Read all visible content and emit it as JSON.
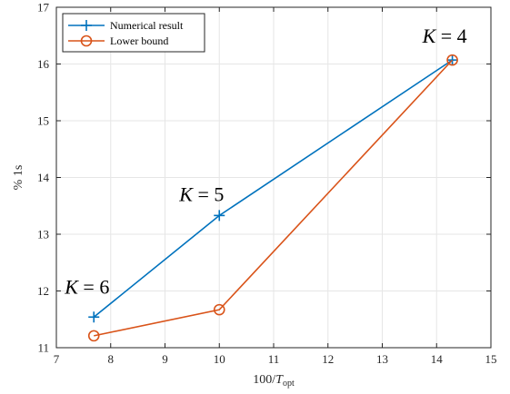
{
  "chart_data": {
    "type": "line",
    "title": "",
    "xlabel_base": "100/",
    "xlabel_var": "T",
    "xlabel_sub": "opt",
    "ylabel": "% 1s",
    "xlim": [
      7,
      15
    ],
    "ylim": [
      11,
      17
    ],
    "xticks": [
      7,
      8,
      9,
      10,
      11,
      12,
      13,
      14,
      15
    ],
    "yticks": [
      11,
      12,
      13,
      14,
      15,
      16,
      17
    ],
    "grid": true,
    "legend_position": "top-left",
    "series": [
      {
        "name": "Numerical result",
        "color": "#0072BD",
        "marker": "plus",
        "x": [
          7.69,
          10.0,
          14.29
        ],
        "y": [
          11.54,
          13.33,
          16.07
        ]
      },
      {
        "name": "Lower bound",
        "color": "#D95319",
        "marker": "circle",
        "x": [
          7.69,
          10.0,
          14.29
        ],
        "y": [
          11.21,
          11.67,
          16.07
        ]
      }
    ],
    "annotations": [
      {
        "var": "K",
        "rest": " = 6",
        "x": 7.69,
        "y": 11.54
      },
      {
        "var": "K",
        "rest": " = 5",
        "x": 10.0,
        "y": 13.33
      },
      {
        "var": "K",
        "rest": " = 4",
        "x": 14.29,
        "y": 16.07
      }
    ]
  }
}
